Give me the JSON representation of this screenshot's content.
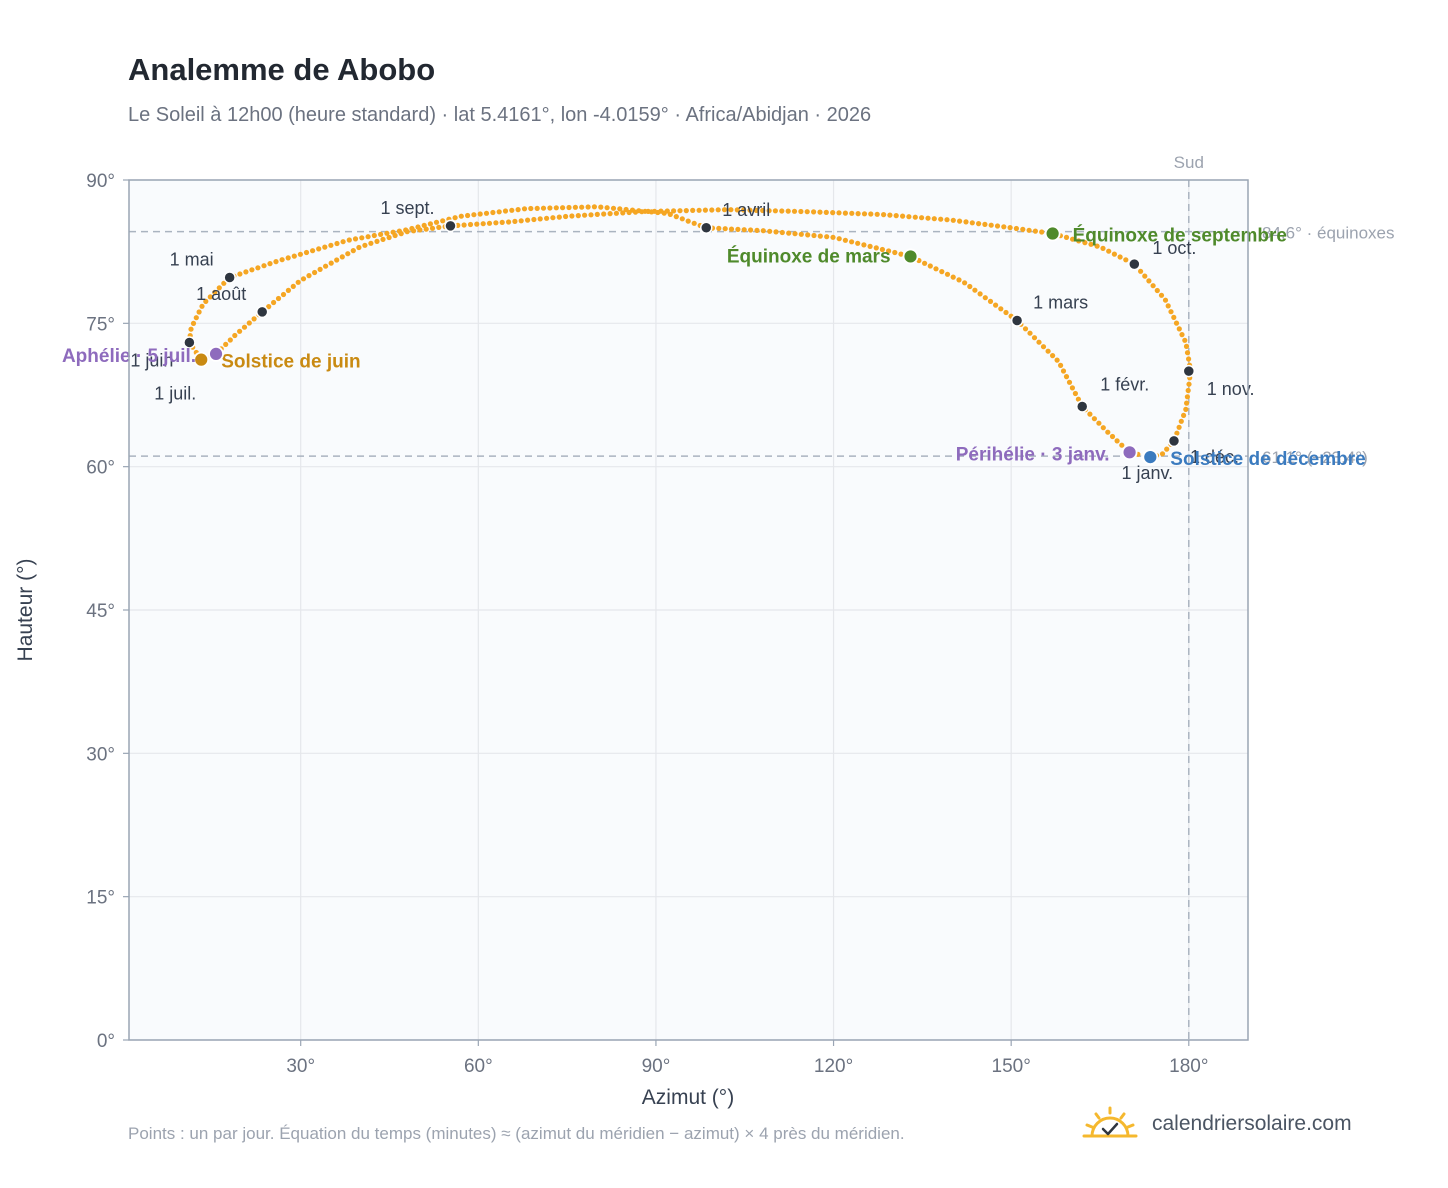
{
  "header": {
    "title": "Analemme de Abobo",
    "subtitle": "Le Soleil à 12h00 (heure standard) · lat 5.4161°, lon -4.0159° · Africa/Abidjan · 2026"
  },
  "footer": {
    "note": "Points : un par jour. Équation du temps (minutes) ≈ (azimut du méridien − azimut) × 4 près du méridien.",
    "brand": "calendriersolaire.com"
  },
  "colors": {
    "curve": "#f5a623",
    "month_marker": "#2f3640",
    "equinox": "#4f8a2b",
    "june_solstice": "#c98a12",
    "december_solstice": "#3b7bbf",
    "apsis": "#8e6bbd",
    "grid": "#e5e7eb",
    "reference_line": "#aab4c0",
    "plot_bg": "#f9fbfd",
    "axis_text": "#6b7280"
  },
  "chart_data": {
    "type": "scatter",
    "title": "Analemme de Abobo",
    "xlabel": "Azimut (°)",
    "ylabel": "Hauteur (°)",
    "xlim": [
      1,
      190
    ],
    "ylim": [
      0,
      90
    ],
    "x_ticks": [
      30,
      60,
      90,
      120,
      150,
      180
    ],
    "x_tick_labels": [
      "30°",
      "60°",
      "90°",
      "120°",
      "150°",
      "180°"
    ],
    "y_ticks": [
      0,
      15,
      30,
      45,
      60,
      75,
      90
    ],
    "y_tick_labels": [
      "0°",
      "15°",
      "30°",
      "45°",
      "60°",
      "75°",
      "90°"
    ],
    "grid": true,
    "legend": "none",
    "south_line": {
      "azimuth": 180,
      "label": "Sud"
    },
    "reference_lines": [
      {
        "altitude": 84.6,
        "label": "84.6° · équinoxes"
      },
      {
        "altitude": 61.1,
        "label": "61.1° (−23.4°)"
      }
    ],
    "analemma_path": [
      {
        "x": 173.5,
        "y": 61.0
      },
      {
        "x": 170.0,
        "y": 61.5
      },
      {
        "x": 166.5,
        "y": 63.5
      },
      {
        "x": 162.0,
        "y": 66.3
      },
      {
        "x": 158.0,
        "y": 71.0
      },
      {
        "x": 151.0,
        "y": 75.3
      },
      {
        "x": 142.0,
        "y": 79.3
      },
      {
        "x": 133.0,
        "y": 82.0
      },
      {
        "x": 120.0,
        "y": 84.0
      },
      {
        "x": 108.0,
        "y": 84.7
      },
      {
        "x": 98.5,
        "y": 85.0
      },
      {
        "x": 92.0,
        "y": 86.5
      },
      {
        "x": 80.0,
        "y": 87.2
      },
      {
        "x": 68.0,
        "y": 87.0
      },
      {
        "x": 57.0,
        "y": 86.2
      },
      {
        "x": 48.0,
        "y": 84.8
      },
      {
        "x": 38.0,
        "y": 83.7
      },
      {
        "x": 26.0,
        "y": 81.5
      },
      {
        "x": 18.0,
        "y": 79.8
      },
      {
        "x": 13.5,
        "y": 77.0
      },
      {
        "x": 11.5,
        "y": 74.5
      },
      {
        "x": 11.2,
        "y": 73.0
      },
      {
        "x": 13.2,
        "y": 71.2
      },
      {
        "x": 15.7,
        "y": 71.8
      },
      {
        "x": 19.0,
        "y": 73.8
      },
      {
        "x": 23.5,
        "y": 76.2
      },
      {
        "x": 30.0,
        "y": 79.5
      },
      {
        "x": 40.0,
        "y": 83.0
      },
      {
        "x": 48.0,
        "y": 84.6
      },
      {
        "x": 55.3,
        "y": 85.2
      },
      {
        "x": 65.0,
        "y": 85.6
      },
      {
        "x": 75.0,
        "y": 86.2
      },
      {
        "x": 88.0,
        "y": 86.7
      },
      {
        "x": 102.0,
        "y": 86.9
      },
      {
        "x": 115.0,
        "y": 86.7
      },
      {
        "x": 128.0,
        "y": 86.4
      },
      {
        "x": 140.0,
        "y": 85.8
      },
      {
        "x": 150.0,
        "y": 85.0
      },
      {
        "x": 157.0,
        "y": 84.4
      },
      {
        "x": 165.0,
        "y": 83.0
      },
      {
        "x": 170.8,
        "y": 81.2
      },
      {
        "x": 176.0,
        "y": 77.5
      },
      {
        "x": 179.5,
        "y": 73.0
      },
      {
        "x": 180.3,
        "y": 70.0
      },
      {
        "x": 179.5,
        "y": 66.0
      },
      {
        "x": 177.5,
        "y": 62.7
      },
      {
        "x": 175.5,
        "y": 61.3
      },
      {
        "x": 173.5,
        "y": 61.0
      }
    ],
    "month_markers": [
      {
        "label": "1 janv.",
        "x": 173.0,
        "y": 61.0
      },
      {
        "label": "1 févr.",
        "x": 162.0,
        "y": 66.3
      },
      {
        "label": "1 mars",
        "x": 151.0,
        "y": 75.3
      },
      {
        "label": "1 avril",
        "x": 98.5,
        "y": 85.0
      },
      {
        "label": "1 mai",
        "x": 18.0,
        "y": 79.8
      },
      {
        "label": "1 juin",
        "x": 11.2,
        "y": 73.0
      },
      {
        "label": "1 juil.",
        "x": 13.2,
        "y": 71.2
      },
      {
        "label": "1 août",
        "x": 23.5,
        "y": 76.2
      },
      {
        "label": "1 sept.",
        "x": 55.3,
        "y": 85.2
      },
      {
        "label": "1 oct.",
        "x": 170.8,
        "y": 81.2
      },
      {
        "label": "1 nov.",
        "x": 180.0,
        "y": 70.0
      },
      {
        "label": "1 déc.",
        "x": 177.5,
        "y": 62.7
      }
    ],
    "events": [
      {
        "label": "Équinoxe de mars",
        "x": 133.0,
        "y": 82.0,
        "kind": "equinox"
      },
      {
        "label": "Équinoxe de septembre",
        "x": 157.0,
        "y": 84.4,
        "kind": "equinox"
      },
      {
        "label": "Solstice de juin",
        "x": 13.2,
        "y": 71.2,
        "kind": "june_solstice"
      },
      {
        "label": "Solstice de décembre",
        "x": 173.5,
        "y": 61.0,
        "kind": "december_solstice"
      },
      {
        "label": "Aphélie · 5 juil.",
        "x": 15.7,
        "y": 71.8,
        "kind": "apsis"
      },
      {
        "label": "Périhélie · 3 janv.",
        "x": 170.0,
        "y": 61.5,
        "kind": "apsis"
      }
    ]
  }
}
